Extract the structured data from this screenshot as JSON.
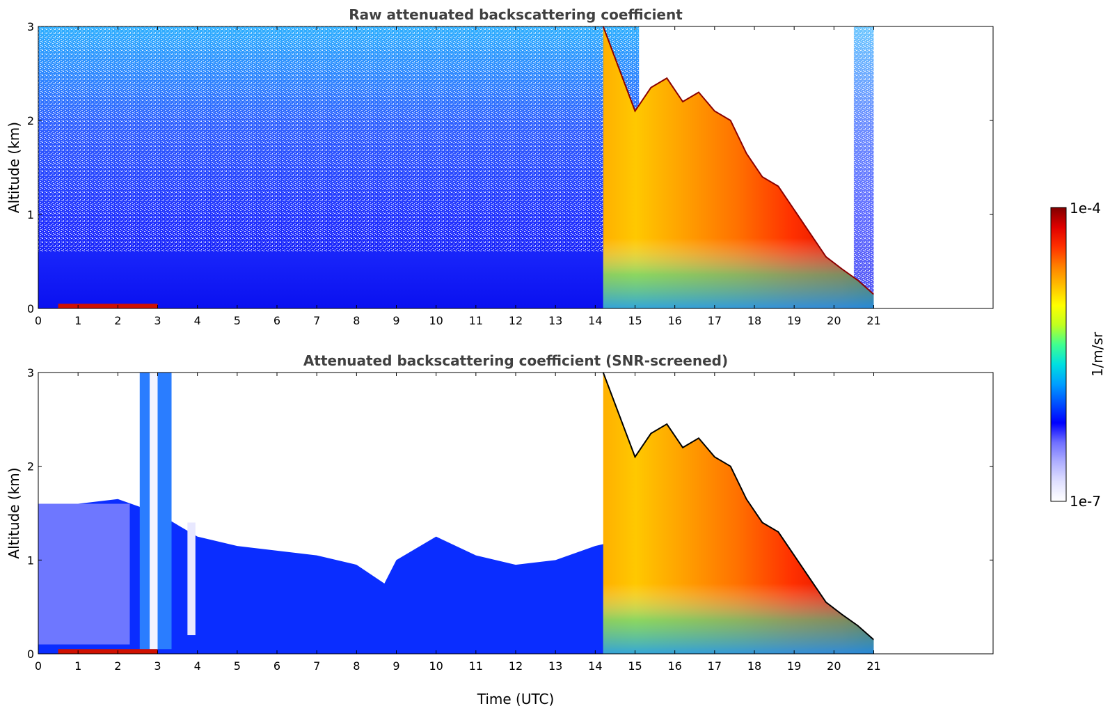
{
  "chart_data": [
    {
      "type": "heatmap",
      "title": "Raw attenuated backscattering coefficient",
      "xlabel": "",
      "ylabel": "Altitude (km)",
      "xlim": [
        0,
        24
      ],
      "ylim": [
        0,
        3
      ],
      "xticks": [
        "0",
        "1",
        "2",
        "3",
        "4",
        "5",
        "6",
        "7",
        "8",
        "9",
        "10",
        "11",
        "12",
        "13",
        "14",
        "15",
        "16",
        "17",
        "18",
        "19",
        "20",
        "21"
      ],
      "yticks": [
        "0",
        "1",
        "2",
        "3"
      ],
      "screened": false,
      "data_end_hour": 21,
      "cloud_top_km": [
        [
          14.2,
          3.0
        ],
        [
          14.6,
          2.55
        ],
        [
          15.0,
          2.1
        ],
        [
          15.4,
          2.35
        ],
        [
          15.8,
          2.45
        ],
        [
          16.2,
          2.2
        ],
        [
          16.6,
          2.3
        ],
        [
          17.0,
          2.1
        ],
        [
          17.4,
          2.0
        ],
        [
          17.8,
          1.65
        ],
        [
          18.2,
          1.4
        ],
        [
          18.6,
          1.3
        ],
        [
          19.0,
          1.05
        ],
        [
          19.4,
          0.8
        ],
        [
          19.8,
          0.55
        ],
        [
          20.2,
          0.42
        ],
        [
          20.6,
          0.3
        ],
        [
          21.0,
          0.15
        ]
      ]
    },
    {
      "type": "heatmap",
      "title": "Attenuated backscattering coefficient (SNR-screened)",
      "xlabel": "Time (UTC)",
      "ylabel": "Altitude (km)",
      "xlim": [
        0,
        24
      ],
      "ylim": [
        0,
        3
      ],
      "xticks": [
        "0",
        "1",
        "2",
        "3",
        "4",
        "5",
        "6",
        "7",
        "8",
        "9",
        "10",
        "11",
        "12",
        "13",
        "14",
        "15",
        "16",
        "17",
        "18",
        "19",
        "20",
        "21"
      ],
      "yticks": [
        "0",
        "1",
        "2",
        "3"
      ],
      "screened": true,
      "data_end_hour": 21,
      "aerosol_top_km": [
        [
          0,
          1.6
        ],
        [
          1,
          1.6
        ],
        [
          2,
          1.65
        ],
        [
          3,
          1.5
        ],
        [
          4,
          1.25
        ],
        [
          5,
          1.15
        ],
        [
          6,
          1.1
        ],
        [
          7,
          1.05
        ],
        [
          8,
          0.95
        ],
        [
          8.7,
          0.75
        ],
        [
          9,
          1.0
        ],
        [
          10,
          1.25
        ],
        [
          11,
          1.05
        ],
        [
          12,
          0.95
        ],
        [
          13,
          1.0
        ],
        [
          14,
          1.15
        ],
        [
          15,
          1.25
        ]
      ],
      "cloud_top_km": [
        [
          14.2,
          3.0
        ],
        [
          14.6,
          2.55
        ],
        [
          15.0,
          2.1
        ],
        [
          15.4,
          2.35
        ],
        [
          15.8,
          2.45
        ],
        [
          16.2,
          2.2
        ],
        [
          16.6,
          2.3
        ],
        [
          17.0,
          2.1
        ],
        [
          17.4,
          2.0
        ],
        [
          17.8,
          1.65
        ],
        [
          18.2,
          1.4
        ],
        [
          18.6,
          1.3
        ],
        [
          19.0,
          1.05
        ],
        [
          19.4,
          0.8
        ],
        [
          19.8,
          0.55
        ],
        [
          20.2,
          0.42
        ],
        [
          20.6,
          0.3
        ],
        [
          21.0,
          0.15
        ]
      ]
    }
  ],
  "colorbar": {
    "label": "1/m/sr",
    "min_label": "1e-7",
    "max_label": "1e-4",
    "scale": "log",
    "colors": [
      "#ffffff",
      "#e0e0ff",
      "#b0b0ff",
      "#7070ff",
      "#0000ff",
      "#0050ff",
      "#00a0ff",
      "#00e0e0",
      "#40ff90",
      "#c0ff20",
      "#ffff00",
      "#ffc000",
      "#ff8000",
      "#ff3000",
      "#e00000",
      "#800000"
    ]
  },
  "colors": {
    "low": "#0a1fff",
    "cloud": "#ff9a00",
    "frame": "#000000"
  }
}
